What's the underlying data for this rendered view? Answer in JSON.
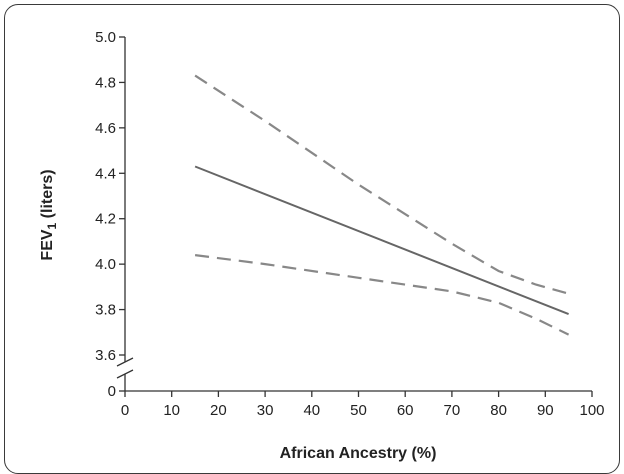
{
  "chart_data": {
    "type": "line",
    "xlabel": "African Ancestry (%)",
    "ylabel_main": "FEV",
    "ylabel_sub": "1",
    "ylabel_unit": " (liters)",
    "x_ticks": [
      "0",
      "10",
      "20",
      "30",
      "40",
      "50",
      "60",
      "70",
      "80",
      "90",
      "100"
    ],
    "y_ticks": [
      "0",
      "3.6",
      "3.8",
      "4.0",
      "4.2",
      "4.4",
      "4.6",
      "4.8",
      "5.0"
    ],
    "xlim": [
      0,
      100
    ],
    "ylim": [
      3.6,
      5.0
    ],
    "axis_break": true,
    "grid": false,
    "series": [
      {
        "style": "solid",
        "color": "#666666",
        "x": [
          15,
          95
        ],
        "y": [
          4.43,
          3.78
        ]
      },
      {
        "style": "dashed",
        "color": "#888888",
        "x": [
          15,
          30,
          50,
          70,
          80,
          88,
          95
        ],
        "y": [
          4.83,
          4.63,
          4.35,
          4.09,
          3.97,
          3.91,
          3.87
        ]
      },
      {
        "style": "dashed",
        "color": "#888888",
        "x": [
          15,
          30,
          50,
          70,
          80,
          88,
          95
        ],
        "y": [
          4.04,
          4.0,
          3.94,
          3.88,
          3.83,
          3.76,
          3.69
        ]
      }
    ]
  }
}
